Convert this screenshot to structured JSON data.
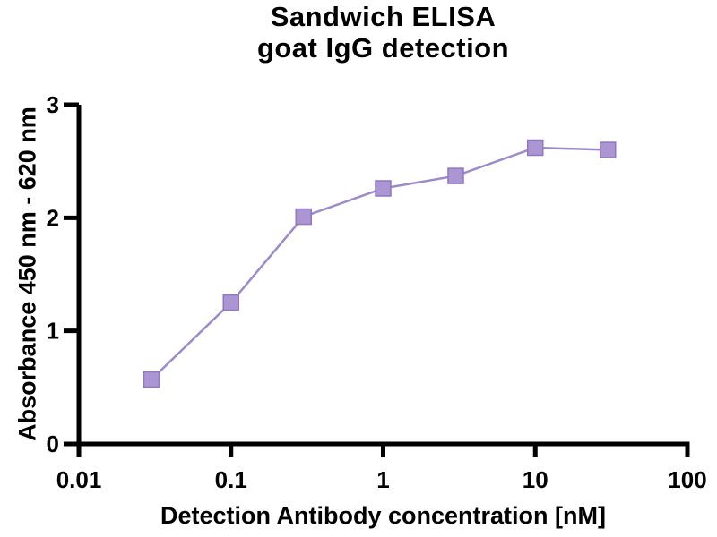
{
  "chart_data": {
    "type": "line",
    "title": "Sandwich ELISA",
    "subtitle": "goat IgG detection",
    "xlabel": "Detection Antibody concentration [nM]",
    "ylabel": "Absorbance 450 nm - 620 nm",
    "xscale": "log",
    "xlim": [
      0.01,
      100
    ],
    "ylim": [
      0,
      3
    ],
    "grid": false,
    "legend": "none",
    "x_ticks": [
      {
        "v": 0.01,
        "label": "0.01"
      },
      {
        "v": 0.1,
        "label": "0.1"
      },
      {
        "v": 1,
        "label": "1"
      },
      {
        "v": 10,
        "label": "10"
      },
      {
        "v": 100,
        "label": "100"
      }
    ],
    "y_ticks": [
      {
        "v": 0,
        "label": "0"
      },
      {
        "v": 1,
        "label": "1"
      },
      {
        "v": 2,
        "label": "2"
      },
      {
        "v": 3,
        "label": "3"
      }
    ],
    "series": [
      {
        "name": "goat IgG detection",
        "marker": "square",
        "x": [
          0.03,
          0.1,
          0.3,
          1,
          3,
          10,
          30
        ],
        "y": [
          0.57,
          1.25,
          2.01,
          2.26,
          2.37,
          2.62,
          2.6
        ]
      }
    ],
    "colors": {
      "marker_fill": "#ab95d3",
      "marker_edge": "#8f77c2",
      "line": "#9d8acb",
      "axis": "#000000",
      "text": "#000000",
      "background": "#ffffff"
    }
  }
}
